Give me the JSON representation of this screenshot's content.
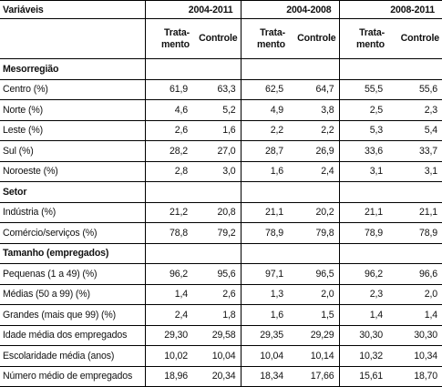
{
  "header": {
    "label": "Variáveis",
    "periods": [
      "2004-2011",
      "2004-2008",
      "2008-2011"
    ],
    "treatment_label": "Trata-mento",
    "control_label": "Controle"
  },
  "sections": [
    {
      "title": "Mesorregião",
      "rows": [
        {
          "label": "Centro (%)",
          "values": [
            "61,9",
            "63,3",
            "62,5",
            "64,7",
            "55,5",
            "55,6"
          ]
        },
        {
          "label": "Norte (%)",
          "values": [
            "4,6",
            "5,2",
            "4,9",
            "3,8",
            "2,5",
            "2,3"
          ]
        },
        {
          "label": "Leste (%)",
          "values": [
            "2,6",
            "1,6",
            "2,2",
            "2,2",
            "5,3",
            "5,4"
          ]
        },
        {
          "label": "Sul (%)",
          "values": [
            "28,2",
            "27,0",
            "28,7",
            "26,9",
            "33,6",
            "33,7"
          ]
        },
        {
          "label": "Noroeste (%)",
          "values": [
            "2,8",
            "3,0",
            "1,6",
            "2,4",
            "3,1",
            "3,1"
          ]
        }
      ]
    },
    {
      "title": "Setor",
      "rows": [
        {
          "label": "Indústria (%)",
          "values": [
            "21,2",
            "20,8",
            "21,1",
            "20,2",
            "21,1",
            "21,1"
          ]
        },
        {
          "label": "Comércio/serviços (%)",
          "values": [
            "78,8",
            "79,2",
            "78,9",
            "79,8",
            "78,9",
            "78,9"
          ]
        }
      ]
    },
    {
      "title": "Tamanho (empregados)",
      "rows": [
        {
          "label": "Pequenas (1 a 49) (%)",
          "values": [
            "96,2",
            "95,6",
            "97,1",
            "96,5",
            "96,2",
            "96,6"
          ]
        },
        {
          "label": "Médias (50 a 99) (%)",
          "values": [
            "1,4",
            "2,6",
            "1,3",
            "2,0",
            "2,3",
            "2,0"
          ]
        },
        {
          "label": "Grandes (mais que 99) (%)",
          "values": [
            "2,4",
            "1,8",
            "1,6",
            "1,5",
            "1,4",
            "1,4"
          ]
        }
      ]
    },
    {
      "title": "",
      "rows": [
        {
          "label": "Idade média dos empregados",
          "values": [
            "29,30",
            "29,58",
            "29,35",
            "29,29",
            "30,30",
            "30,30"
          ]
        },
        {
          "label": "Escolaridade média (anos)",
          "values": [
            "10,02",
            "10,04",
            "10,04",
            "10,14",
            "10,32",
            "10,34"
          ]
        },
        {
          "label": "Número médio de empregados",
          "values": [
            "18,96",
            "20,34",
            "18,34",
            "17,66",
            "15,61",
            "18,70"
          ]
        }
      ]
    }
  ]
}
